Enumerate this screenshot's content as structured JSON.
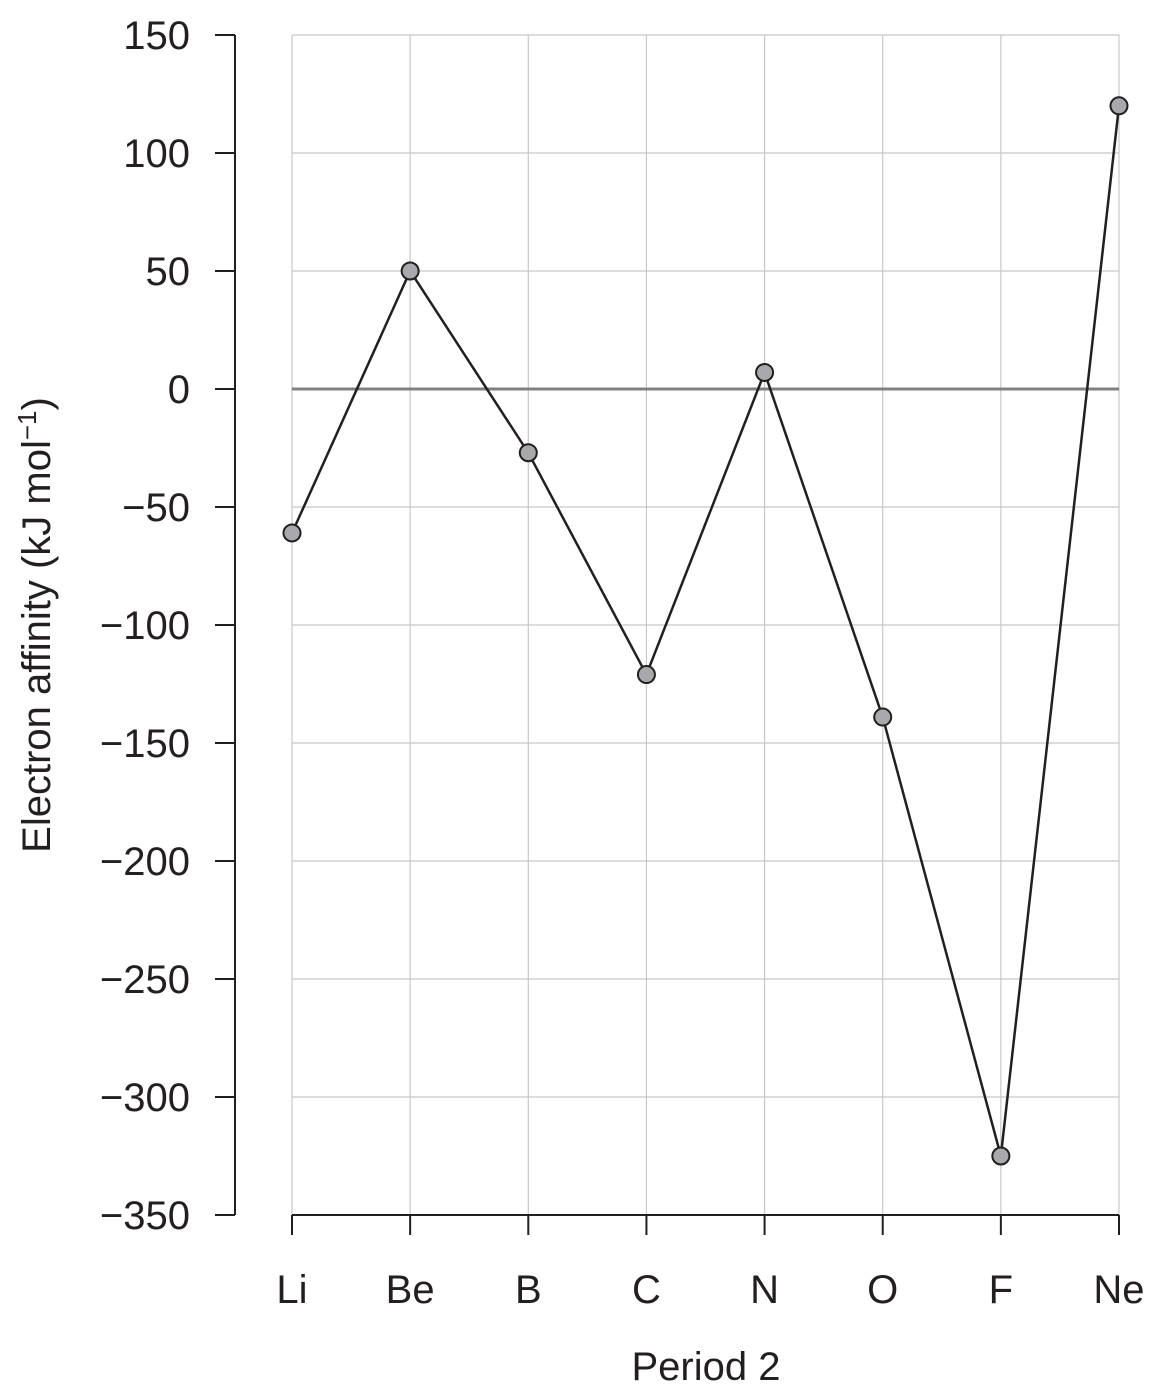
{
  "chart_data": {
    "type": "line",
    "title": "",
    "xlabel": "Period 2",
    "ylabel": "Electron affinity (kJ mol",
    "ylabel_sup": "−1",
    "ylabel_close": ")",
    "categories": [
      "Li",
      "Be",
      "B",
      "C",
      "N",
      "O",
      "F",
      "Ne"
    ],
    "series": [
      {
        "values": [
          -61,
          50,
          -27,
          -121,
          7,
          -139,
          -325,
          120
        ]
      }
    ],
    "ylim": [
      -350,
      150
    ],
    "yticks": [
      150,
      100,
      50,
      0,
      -50,
      -100,
      -150,
      -200,
      -250,
      -300,
      -350
    ],
    "ytick_labels": [
      "150",
      "100",
      "50",
      "0",
      "−50",
      "−100",
      "−150",
      "−200",
      "−250",
      "−300",
      "−350"
    ],
    "grid": true,
    "zero_line": true,
    "colors": {
      "line": "#231f20",
      "marker_fill": "#a7a9ac",
      "marker_stroke": "#231f20",
      "grid": "#c8c8c8",
      "zero_line": "#808080",
      "axis": "#231f20"
    }
  }
}
